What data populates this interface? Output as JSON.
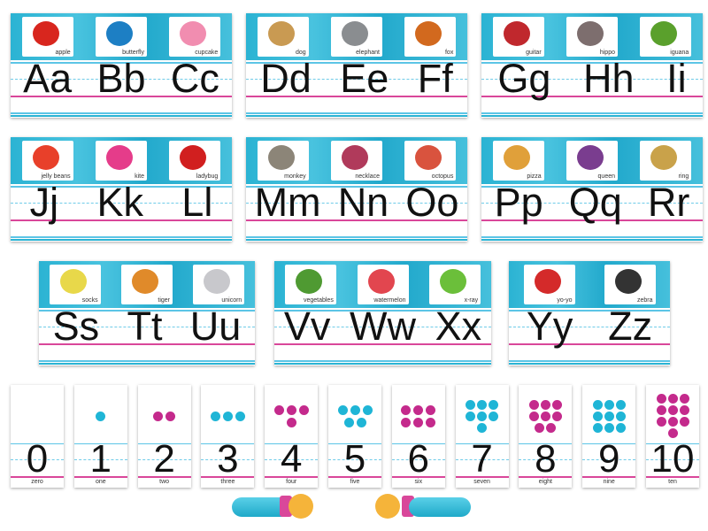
{
  "colors": {
    "teal": "#2bb3d3",
    "magenta": "#c42a8c",
    "pink_line": "#d9479a",
    "blue_line": "#5cc5e6"
  },
  "strips": [
    {
      "letters": [
        "Aa",
        "Bb",
        "Cc"
      ],
      "pictures": [
        {
          "label": "apple",
          "color": "#d8261e"
        },
        {
          "label": "butterfly",
          "color": "#1d7fc4"
        },
        {
          "label": "cupcake",
          "color": "#f18db0"
        }
      ]
    },
    {
      "letters": [
        "Dd",
        "Ee",
        "Ff"
      ],
      "pictures": [
        {
          "label": "dog",
          "color": "#c99a52"
        },
        {
          "label": "elephant",
          "color": "#8a8d90"
        },
        {
          "label": "fox",
          "color": "#d2691e"
        }
      ]
    },
    {
      "letters": [
        "Gg",
        "Hh",
        "Ii"
      ],
      "pictures": [
        {
          "label": "guitar",
          "color": "#c0282d"
        },
        {
          "label": "hippo",
          "color": "#7d6e6e"
        },
        {
          "label": "iguana",
          "color": "#5aa02c"
        }
      ]
    },
    {
      "letters": [
        "Jj",
        "Kk",
        "Ll"
      ],
      "pictures": [
        {
          "label": "jelly beans",
          "color": "#e8402a"
        },
        {
          "label": "kite",
          "color": "#e53c8a"
        },
        {
          "label": "ladybug",
          "color": "#d11f1f"
        }
      ]
    },
    {
      "letters": [
        "Mm",
        "Nn",
        "Oo"
      ],
      "pictures": [
        {
          "label": "monkey",
          "color": "#8c8578"
        },
        {
          "label": "necklace",
          "color": "#b03a5b"
        },
        {
          "label": "octopus",
          "color": "#d9533e"
        }
      ]
    },
    {
      "letters": [
        "Pp",
        "Qq",
        "Rr"
      ],
      "pictures": [
        {
          "label": "pizza",
          "color": "#e0a03a"
        },
        {
          "label": "queen",
          "color": "#7a3d8f"
        },
        {
          "label": "ring",
          "color": "#c9a24a"
        }
      ]
    },
    {
      "letters": [
        "Ss",
        "Tt",
        "Uu"
      ],
      "pictures": [
        {
          "label": "socks",
          "color": "#e8d84a"
        },
        {
          "label": "tiger",
          "color": "#e08a2a"
        },
        {
          "label": "unicorn",
          "color": "#c8c8cc"
        }
      ]
    },
    {
      "letters": [
        "Vv",
        "Ww",
        "Xx"
      ],
      "pictures": [
        {
          "label": "vegetables",
          "color": "#4f9a32"
        },
        {
          "label": "watermelon",
          "color": "#e2464f"
        },
        {
          "label": "x-ray",
          "color": "#6bbf3a"
        }
      ]
    },
    {
      "letters": [
        "Yy",
        "Zz"
      ],
      "pictures": [
        {
          "label": "yo-yo",
          "color": "#d42a2a"
        },
        {
          "label": "zebra",
          "color": "#333333"
        }
      ]
    }
  ],
  "numbers": [
    {
      "digit": "0",
      "word": "zero",
      "dots": 0,
      "dot_color": "#1fb5d6"
    },
    {
      "digit": "1",
      "word": "one",
      "dots": 1,
      "dot_color": "#1fb5d6"
    },
    {
      "digit": "2",
      "word": "two",
      "dots": 2,
      "dot_color": "#c42a8c"
    },
    {
      "digit": "3",
      "word": "three",
      "dots": 3,
      "dot_color": "#1fb5d6"
    },
    {
      "digit": "4",
      "word": "four",
      "dots": 4,
      "dot_color": "#c42a8c"
    },
    {
      "digit": "5",
      "word": "five",
      "dots": 5,
      "dot_color": "#1fb5d6"
    },
    {
      "digit": "6",
      "word": "six",
      "dots": 6,
      "dot_color": "#c42a8c"
    },
    {
      "digit": "7",
      "word": "seven",
      "dots": 7,
      "dot_color": "#1fb5d6"
    },
    {
      "digit": "8",
      "word": "eight",
      "dots": 8,
      "dot_color": "#c42a8c"
    },
    {
      "digit": "9",
      "word": "nine",
      "dots": 9,
      "dot_color": "#1fb5d6"
    },
    {
      "digit": "10",
      "word": "ten",
      "dots": 10,
      "dot_color": "#c42a8c"
    }
  ],
  "decorations": [
    "pointing-hand-left-icon",
    "pointing-hand-right-icon"
  ]
}
